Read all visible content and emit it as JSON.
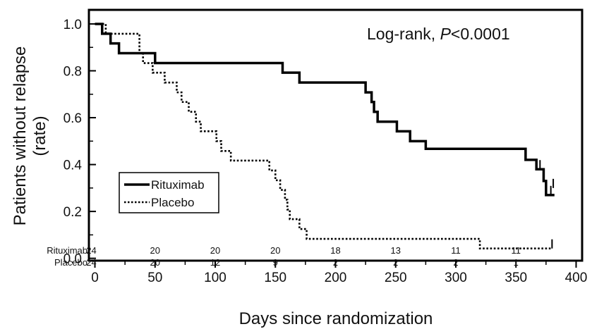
{
  "chart_data": {
    "type": "line",
    "xlabel": "Days since randomization",
    "ylabel_line1": "Patients without relapse",
    "ylabel_line2": "(rate)",
    "xlim": [
      -5,
      405
    ],
    "ylim": [
      -0.01,
      1.06
    ],
    "x_ticks": [
      0,
      50,
      100,
      150,
      200,
      250,
      300,
      350,
      400
    ],
    "x_tick_labels": [
      "0",
      "50",
      "100",
      "150",
      "200",
      "250",
      "300",
      "350",
      "400"
    ],
    "y_ticks": [
      0.0,
      0.2,
      0.4,
      0.6,
      0.8,
      1.0
    ],
    "y_tick_labels": [
      "0.0",
      "0.2",
      "0.4",
      "0.6",
      "0.8",
      "1.0"
    ],
    "grid": false,
    "legend_position": "lower-left",
    "annotation": {
      "prefix": "Log-rank, ",
      "italic": "P",
      "suffix": "<0.0001"
    },
    "series": [
      {
        "name": "Rituximab",
        "style": "solid",
        "color": "#000000",
        "steps": [
          [
            0,
            1.0
          ],
          [
            6,
            0.958
          ],
          [
            13,
            0.917
          ],
          [
            20,
            0.875
          ],
          [
            50,
            0.833
          ],
          [
            156,
            0.792
          ],
          [
            170,
            0.75
          ],
          [
            225,
            0.708
          ],
          [
            230,
            0.667
          ],
          [
            232,
            0.625
          ],
          [
            235,
            0.583
          ],
          [
            251,
            0.542
          ],
          [
            262,
            0.5
          ],
          [
            275,
            0.467
          ],
          [
            358,
            0.42
          ],
          [
            367,
            0.38
          ],
          [
            373,
            0.33
          ],
          [
            375,
            0.27
          ]
        ],
        "end_x": 382,
        "censor": [
          [
            370,
            0.38
          ],
          [
            379,
            0.27
          ],
          [
            381,
            0.3
          ]
        ]
      },
      {
        "name": "Placebo",
        "style": "dotted",
        "color": "#000000",
        "steps": [
          [
            0,
            1.0
          ],
          [
            9,
            0.958
          ],
          [
            37,
            0.875
          ],
          [
            40,
            0.833
          ],
          [
            48,
            0.792
          ],
          [
            58,
            0.75
          ],
          [
            68,
            0.708
          ],
          [
            72,
            0.667
          ],
          [
            78,
            0.625
          ],
          [
            84,
            0.583
          ],
          [
            88,
            0.542
          ],
          [
            101,
            0.5
          ],
          [
            105,
            0.458
          ],
          [
            113,
            0.417
          ],
          [
            145,
            0.375
          ],
          [
            150,
            0.333
          ],
          [
            154,
            0.292
          ],
          [
            158,
            0.25
          ],
          [
            160,
            0.208
          ],
          [
            162,
            0.167
          ],
          [
            170,
            0.125
          ],
          [
            176,
            0.083
          ],
          [
            320,
            0.042
          ]
        ],
        "end_x": 380,
        "censor": [
          [
            380,
            0.042
          ]
        ]
      }
    ],
    "risk_table": {
      "times": [
        0,
        50,
        100,
        150,
        200,
        250,
        300,
        350
      ],
      "rows": [
        {
          "name": "Rituximab",
          "counts": [
            "24",
            "20",
            "20",
            "20",
            "18",
            "13",
            "11",
            "11"
          ]
        },
        {
          "name": "Placebo",
          "counts": [
            "24",
            "20",
            "12",
            "9",
            "2",
            "2",
            "2",
            "1"
          ]
        }
      ]
    }
  }
}
